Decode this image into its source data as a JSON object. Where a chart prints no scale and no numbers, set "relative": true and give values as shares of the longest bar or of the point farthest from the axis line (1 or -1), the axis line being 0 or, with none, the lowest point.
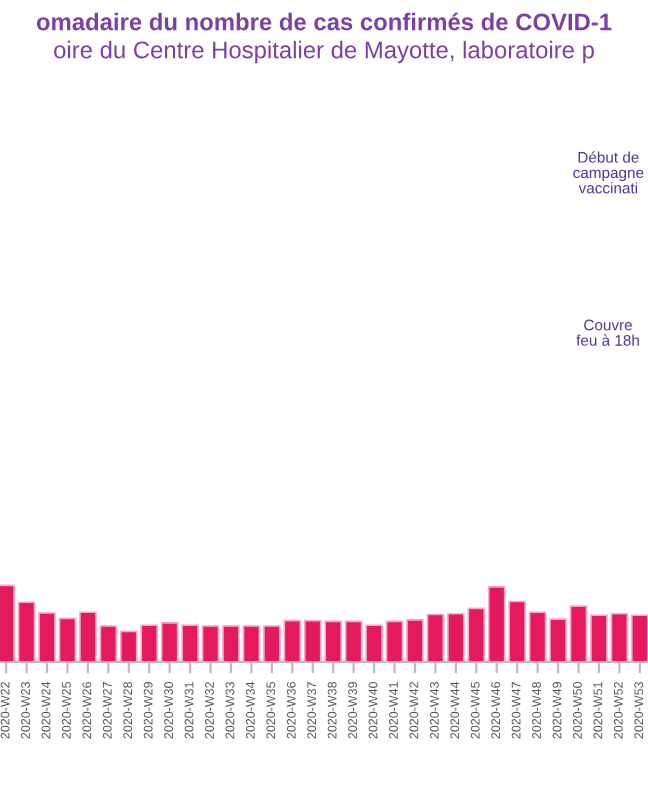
{
  "chart_data": {
    "type": "bar",
    "relative": true,
    "title": "omadaire du nombre de cas confirmés de COVID-1",
    "subtitle": "oire du Centre Hospitalier de Mayotte, laboratoire p",
    "categories": [
      "2020-W22",
      "2020-W23",
      "2020-W24",
      "2020-W25",
      "2020-W26",
      "2020-W27",
      "2020-W28",
      "2020-W29",
      "2020-W30",
      "2020-W31",
      "2020-W32",
      "2020-W33",
      "2020-W34",
      "2020-W35",
      "2020-W36",
      "2020-W37",
      "2020-W38",
      "2020-W39",
      "2020-W40",
      "2020-W41",
      "2020-W42",
      "2020-W43",
      "2020-W44",
      "2020-W45",
      "2020-W46",
      "2020-W47",
      "2020-W48",
      "2020-W49",
      "2020-W50",
      "2020-W51",
      "2020-W52",
      "2020-W53"
    ],
    "values": [
      1,
      0.78,
      0.64,
      0.57,
      0.65,
      0.47,
      0.4,
      0.48,
      0.51,
      0.48,
      0.47,
      0.47,
      0.47,
      0.47,
      0.54,
      0.54,
      0.53,
      0.53,
      0.48,
      0.53,
      0.55,
      0.62,
      0.63,
      0.7,
      0.98,
      0.79,
      0.65,
      0.56,
      0.73,
      0.61,
      0.63,
      0.61
    ],
    "color": "#e5195e",
    "annotations": [
      "Début de\ncampagne\nvaccinati",
      "Couvre\nfeu à 18h"
    ]
  }
}
